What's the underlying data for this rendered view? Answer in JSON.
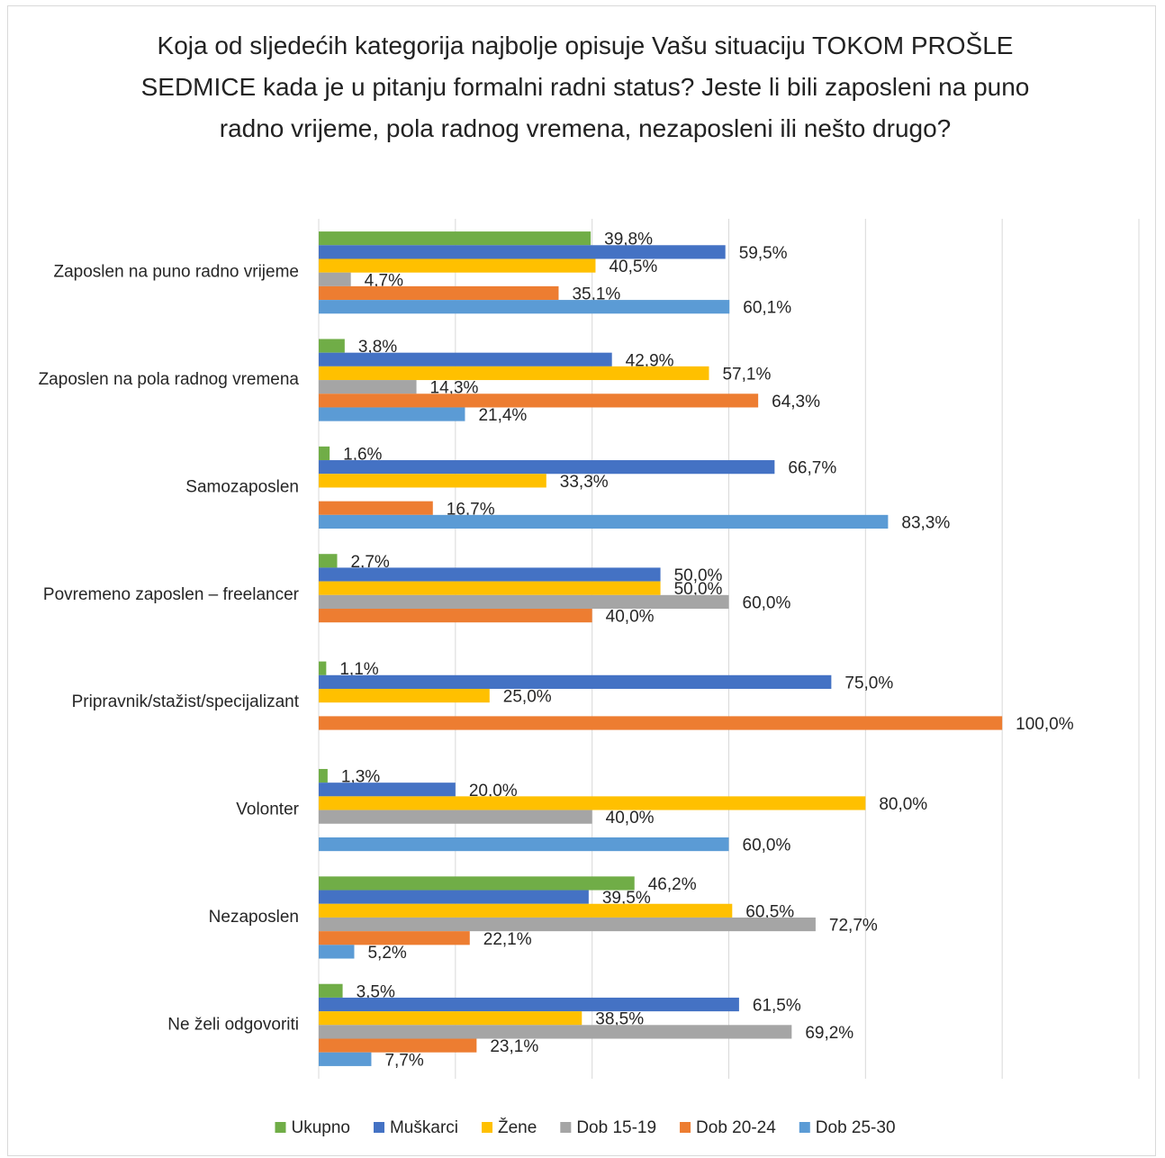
{
  "chart_data": {
    "type": "hbar",
    "title": "Koja od sljedećih kategorija najbolje opisuje Vašu situaciju TOKOM PROŠLE SEDMICE kada je u pitanju formalni radni status? Jeste li bili zaposleni na puno radno vrijeme, pola radnog vremena, nezaposleni ili nešto drugo?",
    "categories": [
      "Zaposlen na puno radno vrijeme",
      "Zaposlen na pola radnog vremena",
      "Samozaposlen",
      "Povremeno zaposlen – freelancer",
      "Pripravnik/stažist/specijalizant",
      "Volonter",
      "Nezaposlen",
      "Ne želi odgovoriti"
    ],
    "series": [
      {
        "name": "Ukupno",
        "color": "#70ad47",
        "values": [
          39.8,
          3.8,
          1.6,
          2.7,
          1.1,
          1.3,
          46.2,
          3.5
        ],
        "value_labels": [
          "39,8%",
          "3,8%",
          "1,6%",
          "2,7%",
          "1,1%",
          "1,3%",
          "46,2%",
          "3,5%"
        ]
      },
      {
        "name": "Muškarci",
        "color": "#4472c4",
        "values": [
          59.5,
          42.9,
          66.7,
          50.0,
          75.0,
          20.0,
          39.5,
          61.5
        ],
        "value_labels": [
          "59,5%",
          "42,9%",
          "66,7%",
          "50,0%",
          "75,0%",
          "20,0%",
          "39,5%",
          "61,5%"
        ]
      },
      {
        "name": "Žene",
        "color": "#ffc000",
        "values": [
          40.5,
          57.1,
          33.3,
          50.0,
          25.0,
          80.0,
          60.5,
          38.5
        ],
        "value_labels": [
          "40,5%",
          "57,1%",
          "33,3%",
          "50,0%",
          "25,0%",
          "80,0%",
          "60,5%",
          "38,5%"
        ]
      },
      {
        "name": "Dob 15-19",
        "color": "#a5a5a5",
        "values": [
          4.7,
          14.3,
          null,
          60.0,
          null,
          40.0,
          72.7,
          69.2
        ],
        "value_labels": [
          "4,7%",
          "14,3%",
          null,
          "60,0%",
          null,
          "40,0%",
          "72,7%",
          "69,2%"
        ]
      },
      {
        "name": "Dob 20-24",
        "color": "#ed7d31",
        "values": [
          35.1,
          64.3,
          16.7,
          40.0,
          100.0,
          null,
          22.1,
          23.1
        ],
        "value_labels": [
          "35,1%",
          "64,3%",
          "16,7%",
          "40,0%",
          "100,0%",
          null,
          "22,1%",
          "23,1%"
        ]
      },
      {
        "name": "Dob 25-30",
        "color": "#5b9bd5",
        "values": [
          60.1,
          21.4,
          83.3,
          null,
          null,
          60.0,
          5.2,
          7.7
        ],
        "value_labels": [
          "60,1%",
          "21,4%",
          "83,3%",
          null,
          null,
          "60,0%",
          "5,2%",
          "7,7%"
        ]
      }
    ],
    "xlim": [
      0,
      120
    ],
    "xticks": [
      0,
      20,
      40,
      60,
      80,
      100,
      120
    ],
    "grid": true,
    "legend": "bottom"
  }
}
